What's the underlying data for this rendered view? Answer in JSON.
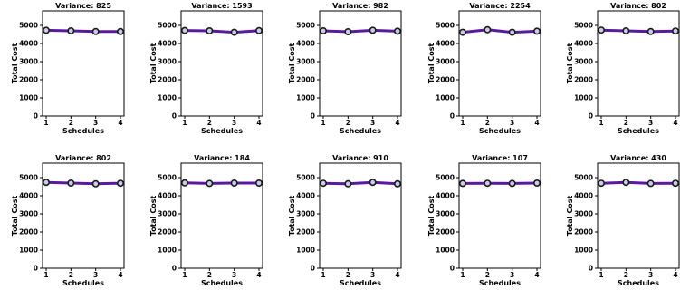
{
  "colors": {
    "line": "#5a1aa0",
    "marker_fill": "#c8cce8",
    "marker_edge": "#1a1a1a",
    "axis": "#000000"
  },
  "chart_data": [
    {
      "type": "line",
      "title": "Variance: 825",
      "xlabel": "Schedules",
      "ylabel": "Total Cost",
      "x": [
        1,
        2,
        3,
        4
      ],
      "y": [
        4730,
        4700,
        4660,
        4660
      ],
      "xticks": [
        "1",
        "2",
        "3",
        "4"
      ],
      "yticks": [
        "0",
        "1000",
        "2000",
        "3000",
        "4000",
        "5000"
      ],
      "ylim": [
        0,
        5800
      ],
      "grid": false
    },
    {
      "type": "line",
      "title": "Variance: 1593",
      "xlabel": "Schedules",
      "ylabel": "Total Cost",
      "x": [
        1,
        2,
        3,
        4
      ],
      "y": [
        4720,
        4700,
        4620,
        4710
      ],
      "xticks": [
        "1",
        "2",
        "3",
        "4"
      ],
      "yticks": [
        "0",
        "1000",
        "2000",
        "3000",
        "4000",
        "5000"
      ],
      "ylim": [
        0,
        5800
      ],
      "grid": false
    },
    {
      "type": "line",
      "title": "Variance: 982",
      "xlabel": "Schedules",
      "ylabel": "Total Cost",
      "x": [
        1,
        2,
        3,
        4
      ],
      "y": [
        4700,
        4650,
        4730,
        4680
      ],
      "xticks": [
        "1",
        "2",
        "3",
        "4"
      ],
      "yticks": [
        "0",
        "1000",
        "2000",
        "3000",
        "4000",
        "5000"
      ],
      "ylim": [
        0,
        5800
      ],
      "grid": false
    },
    {
      "type": "line",
      "title": "Variance: 2254",
      "xlabel": "Schedules",
      "ylabel": "Total Cost",
      "x": [
        1,
        2,
        3,
        4
      ],
      "y": [
        4620,
        4760,
        4620,
        4680
      ],
      "xticks": [
        "1",
        "2",
        "3",
        "4"
      ],
      "yticks": [
        "0",
        "1000",
        "2000",
        "3000",
        "4000",
        "5000"
      ],
      "ylim": [
        0,
        5800
      ],
      "grid": false
    },
    {
      "type": "line",
      "title": "Variance: 802",
      "xlabel": "Schedules",
      "ylabel": "Total Cost",
      "x": [
        1,
        2,
        3,
        4
      ],
      "y": [
        4740,
        4700,
        4660,
        4690
      ],
      "xticks": [
        "1",
        "2",
        "3",
        "4"
      ],
      "yticks": [
        "0",
        "1000",
        "2000",
        "3000",
        "4000",
        "5000"
      ],
      "ylim": [
        0,
        5800
      ],
      "grid": false
    },
    {
      "type": "line",
      "title": "Variance: 802",
      "xlabel": "Schedules",
      "ylabel": "Total Cost",
      "x": [
        1,
        2,
        3,
        4
      ],
      "y": [
        4740,
        4700,
        4660,
        4690
      ],
      "xticks": [
        "1",
        "2",
        "3",
        "4"
      ],
      "yticks": [
        "0",
        "1000",
        "2000",
        "3000",
        "4000",
        "5000"
      ],
      "ylim": [
        0,
        5800
      ],
      "grid": false
    },
    {
      "type": "line",
      "title": "Variance: 184",
      "xlabel": "Schedules",
      "ylabel": "Total Cost",
      "x": [
        1,
        2,
        3,
        4
      ],
      "y": [
        4710,
        4680,
        4700,
        4700
      ],
      "xticks": [
        "1",
        "2",
        "3",
        "4"
      ],
      "yticks": [
        "0",
        "1000",
        "2000",
        "3000",
        "4000",
        "5000"
      ],
      "ylim": [
        0,
        5800
      ],
      "grid": false
    },
    {
      "type": "line",
      "title": "Variance: 910",
      "xlabel": "Schedules",
      "ylabel": "Total Cost",
      "x": [
        1,
        2,
        3,
        4
      ],
      "y": [
        4690,
        4660,
        4740,
        4660
      ],
      "xticks": [
        "1",
        "2",
        "3",
        "4"
      ],
      "yticks": [
        "0",
        "1000",
        "2000",
        "3000",
        "4000",
        "5000"
      ],
      "ylim": [
        0,
        5800
      ],
      "grid": false
    },
    {
      "type": "line",
      "title": "Variance: 107",
      "xlabel": "Schedules",
      "ylabel": "Total Cost",
      "x": [
        1,
        2,
        3,
        4
      ],
      "y": [
        4680,
        4690,
        4680,
        4700
      ],
      "xticks": [
        "1",
        "2",
        "3",
        "4"
      ],
      "yticks": [
        "0",
        "1000",
        "2000",
        "3000",
        "4000",
        "5000"
      ],
      "ylim": [
        0,
        5800
      ],
      "grid": false
    },
    {
      "type": "line",
      "title": "Variance: 430",
      "xlabel": "Schedules",
      "ylabel": "Total Cost",
      "x": [
        1,
        2,
        3,
        4
      ],
      "y": [
        4690,
        4740,
        4680,
        4690
      ],
      "xticks": [
        "1",
        "2",
        "3",
        "4"
      ],
      "yticks": [
        "0",
        "1000",
        "2000",
        "3000",
        "4000",
        "5000"
      ],
      "ylim": [
        0,
        5800
      ],
      "grid": false
    }
  ]
}
